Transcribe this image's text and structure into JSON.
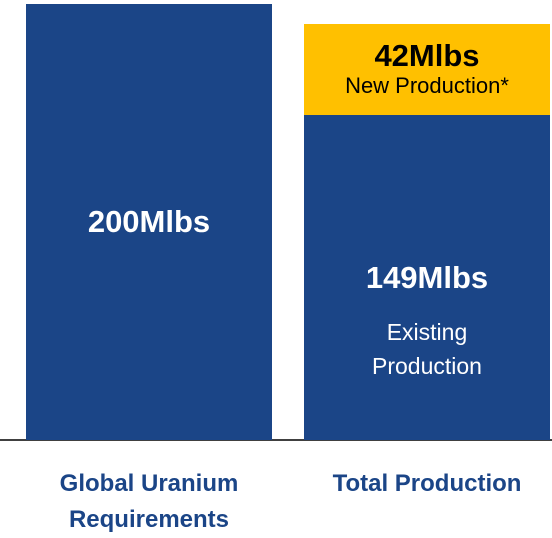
{
  "chart_data": {
    "type": "stacked-bar",
    "bars": [
      {
        "category": "Global Uranium Requirements",
        "segments": [
          {
            "value": 200,
            "value_label": "200Mlbs",
            "color": "#1b4587"
          }
        ]
      },
      {
        "category": "Total Production",
        "segments": [
          {
            "value": 149,
            "value_label": "149Mlbs",
            "name": "Existing Production",
            "color": "#1b4587"
          },
          {
            "value": 42,
            "value_label": "42Mlbs",
            "name": "New Production*",
            "color": "#ffc000"
          }
        ]
      }
    ]
  }
}
